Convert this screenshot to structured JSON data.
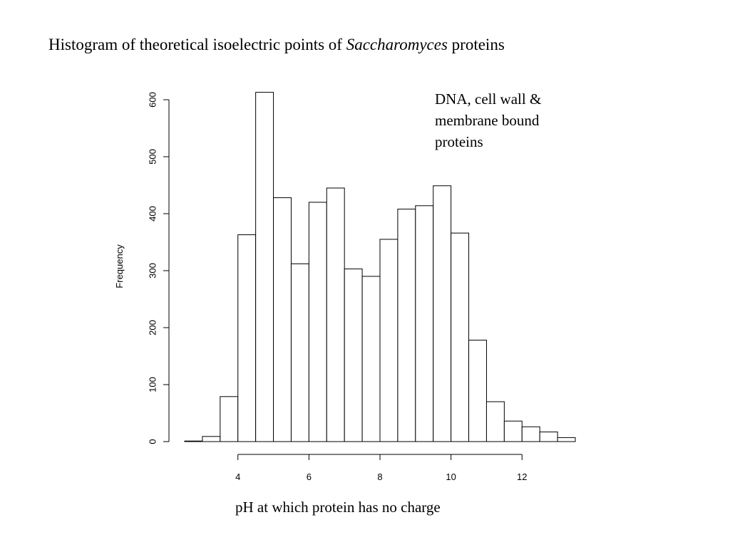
{
  "slide": {
    "title_prefix": "Histogram of theoretical isoelectric points of ",
    "title_italic": "Saccharomyces",
    "title_suffix": " proteins",
    "annotation_lines": [
      "DNA, cell wall &",
      "membrane bound",
      "proteins"
    ]
  },
  "chart_data": {
    "type": "bar",
    "subtype": "histogram",
    "xlabel": "pH at which protein has no charge",
    "ylabel": "Frequency",
    "bin_width": 0.5,
    "bins": [
      {
        "from": 2.5,
        "to": 3.0,
        "value": 1
      },
      {
        "from": 3.0,
        "to": 3.5,
        "value": 9
      },
      {
        "from": 3.5,
        "to": 4.0,
        "value": 79
      },
      {
        "from": 4.0,
        "to": 4.5,
        "value": 363
      },
      {
        "from": 4.5,
        "to": 5.0,
        "value": 613
      },
      {
        "from": 5.0,
        "to": 5.5,
        "value": 428
      },
      {
        "from": 5.5,
        "to": 6.0,
        "value": 312
      },
      {
        "from": 6.0,
        "to": 6.5,
        "value": 420
      },
      {
        "from": 6.5,
        "to": 7.0,
        "value": 445
      },
      {
        "from": 7.0,
        "to": 7.5,
        "value": 303
      },
      {
        "from": 7.5,
        "to": 8.0,
        "value": 290
      },
      {
        "from": 8.0,
        "to": 8.5,
        "value": 355
      },
      {
        "from": 8.5,
        "to": 9.0,
        "value": 408
      },
      {
        "from": 9.0,
        "to": 9.5,
        "value": 414
      },
      {
        "from": 9.5,
        "to": 10.0,
        "value": 449
      },
      {
        "from": 10.0,
        "to": 10.5,
        "value": 366
      },
      {
        "from": 10.5,
        "to": 11.0,
        "value": 178
      },
      {
        "from": 11.0,
        "to": 11.5,
        "value": 70
      },
      {
        "from": 11.5,
        "to": 12.0,
        "value": 36
      },
      {
        "from": 12.0,
        "to": 12.5,
        "value": 26
      },
      {
        "from": 12.5,
        "to": 13.0,
        "value": 17
      },
      {
        "from": 13.0,
        "to": 13.5,
        "value": 7
      }
    ],
    "xlim": [
      2.5,
      13.5
    ],
    "ylim": [
      0,
      613
    ],
    "xticks": [
      4,
      6,
      8,
      10,
      12
    ],
    "xtick_labels": [
      "4",
      "6",
      "8",
      "10",
      "12"
    ],
    "yticks": [
      0,
      100,
      200,
      300,
      400,
      500,
      600
    ],
    "ytick_labels": [
      "0",
      "100",
      "200",
      "300",
      "400",
      "500",
      "600"
    ],
    "bar_fill": "#ffffff",
    "bar_stroke": "#000000",
    "grid": false,
    "legend": "none"
  }
}
